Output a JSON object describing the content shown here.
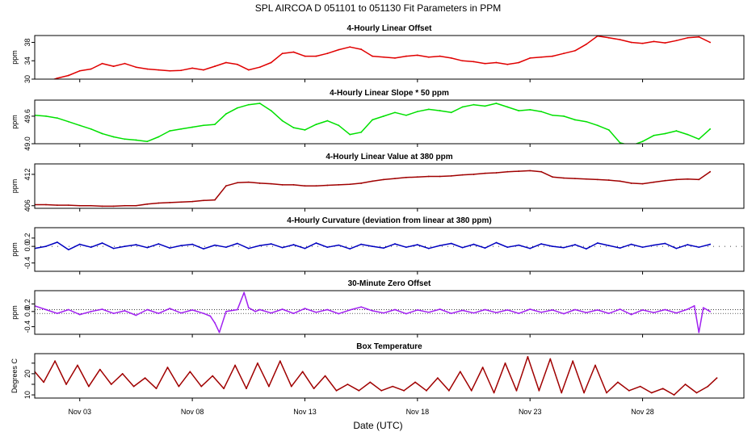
{
  "figure": {
    "title": "SPL   AIRCOA D   051101 to 051130   Fit Parameters in PPM",
    "xlabel": "Date (UTC)"
  },
  "chart_data": [
    {
      "type": "line",
      "title": "4-Hourly Linear Offset",
      "ylabel": "ppm",
      "color": "#e00000",
      "xlim": [
        0,
        31.5
      ],
      "ylim": [
        30,
        39.5
      ],
      "yticks": [
        30,
        34,
        38
      ],
      "ytick_labels": [
        "30",
        "34",
        "38"
      ],
      "xticks": [
        2,
        7,
        12,
        17,
        22,
        27
      ],
      "xtick_labels": [
        "Nov 03",
        "Nov 08",
        "Nov 13",
        "Nov 18",
        "Nov 23",
        "Nov 28"
      ],
      "series": [
        {
          "x": [
            0,
            0.5,
            1,
            1.5,
            2,
            2.5,
            3,
            3.5,
            4,
            4.5,
            5,
            5.5,
            6,
            6.5,
            7,
            7.5,
            8,
            8.5,
            9,
            9.5,
            10,
            10.5,
            11,
            11.5,
            12,
            12.5,
            13,
            13.5,
            14,
            14.5,
            15,
            15.5,
            16,
            16.5,
            17,
            17.5,
            18,
            18.5,
            19,
            19.5,
            20,
            20.5,
            21,
            21.5,
            22,
            22.5,
            23,
            23.5,
            24,
            24.5,
            25,
            25.5,
            26,
            26.5,
            27,
            27.5,
            28,
            28.5,
            29,
            29.5,
            30
          ],
          "y": [
            29.5,
            29.4,
            30.2,
            30.8,
            31.8,
            32.2,
            33.4,
            32.8,
            33.4,
            32.6,
            32.2,
            32.0,
            31.8,
            31.9,
            32.4,
            32.0,
            32.8,
            33.6,
            33.2,
            32.0,
            32.6,
            33.6,
            35.6,
            35.9,
            35.0,
            35.0,
            35.6,
            36.4,
            37.0,
            36.5,
            35.0,
            34.8,
            34.6,
            35.0,
            35.2,
            34.8,
            35.0,
            34.6,
            34.0,
            33.8,
            33.4,
            33.6,
            33.2,
            33.6,
            34.6,
            34.8,
            35.0,
            35.6,
            36.2,
            37.6,
            39.4,
            39.0,
            38.6,
            38.0,
            37.8,
            38.2,
            37.9,
            38.4,
            39.0,
            39.2,
            38.0
          ]
        }
      ]
    },
    {
      "type": "line",
      "title": "4-Hourly Linear Slope * 50 ppm",
      "ylabel": "ppm",
      "color": "#00e000",
      "xlim": [
        0,
        31.5
      ],
      "ylim": [
        49.0,
        49.95
      ],
      "yticks": [
        49.0,
        49.6
      ],
      "ytick_labels": [
        "49.0",
        "49.6"
      ],
      "xticks": [
        2,
        7,
        12,
        17,
        22,
        27
      ],
      "series": [
        {
          "x": [
            0,
            0.5,
            1,
            1.5,
            2,
            2.5,
            3,
            3.5,
            4,
            4.5,
            5,
            5.5,
            6,
            6.5,
            7,
            7.5,
            8,
            8.5,
            9,
            9.5,
            10,
            10.5,
            11,
            11.5,
            12,
            12.5,
            13,
            13.5,
            14,
            14.5,
            15,
            15.5,
            16,
            16.5,
            17,
            17.5,
            18,
            18.5,
            19,
            19.5,
            20,
            20.5,
            21,
            21.5,
            22,
            22.5,
            23,
            23.5,
            24,
            24.5,
            25,
            25.5,
            26,
            26.5,
            27,
            27.5,
            28,
            28.5,
            29,
            29.5,
            30
          ],
          "y": [
            49.62,
            49.6,
            49.56,
            49.48,
            49.4,
            49.32,
            49.22,
            49.15,
            49.1,
            49.08,
            49.05,
            49.15,
            49.28,
            49.32,
            49.36,
            49.4,
            49.42,
            49.65,
            49.78,
            49.85,
            49.88,
            49.72,
            49.5,
            49.35,
            49.3,
            49.42,
            49.5,
            49.4,
            49.2,
            49.25,
            49.52,
            49.6,
            49.68,
            49.62,
            49.7,
            49.75,
            49.72,
            49.68,
            49.8,
            49.85,
            49.82,
            49.88,
            49.8,
            49.72,
            49.74,
            49.7,
            49.62,
            49.6,
            49.52,
            49.48,
            49.4,
            49.3,
            49.02,
            48.96,
            49.05,
            49.18,
            49.22,
            49.28,
            49.2,
            49.1,
            49.32
          ]
        }
      ]
    },
    {
      "type": "line",
      "title": "4-Hourly Linear Value at 380 ppm",
      "ylabel": "ppm",
      "color": "#a00000",
      "xlim": [
        0,
        31.5
      ],
      "ylim": [
        405.5,
        414
      ],
      "yticks": [
        406,
        412
      ],
      "ytick_labels": [
        "406",
        "412"
      ],
      "xticks": [
        2,
        7,
        12,
        17,
        22,
        27
      ],
      "series": [
        {
          "x": [
            0,
            0.5,
            1,
            1.5,
            2,
            2.5,
            3,
            3.5,
            4,
            4.5,
            5,
            5.5,
            6,
            6.5,
            7,
            7.5,
            8,
            8.5,
            9,
            9.5,
            10,
            10.5,
            11,
            11.5,
            12,
            12.5,
            13,
            13.5,
            14,
            14.5,
            15,
            15.5,
            16,
            16.5,
            17,
            17.5,
            18,
            18.5,
            19,
            19.5,
            20,
            20.5,
            21,
            21.5,
            22,
            22.5,
            23,
            23.5,
            24,
            24.5,
            25,
            25.5,
            26,
            26.5,
            27,
            27.5,
            28,
            28.5,
            29,
            29.5,
            30
          ],
          "y": [
            406.2,
            406.2,
            406.1,
            406.1,
            406.0,
            406.0,
            405.9,
            405.9,
            406.0,
            406.0,
            406.3,
            406.5,
            406.6,
            406.7,
            406.8,
            407.0,
            407.1,
            409.8,
            410.4,
            410.5,
            410.3,
            410.2,
            410.0,
            410.0,
            409.8,
            409.8,
            409.9,
            410.0,
            410.1,
            410.3,
            410.7,
            411.0,
            411.2,
            411.4,
            411.5,
            411.6,
            411.6,
            411.7,
            411.9,
            412.0,
            412.2,
            412.3,
            412.5,
            412.6,
            412.7,
            412.5,
            411.5,
            411.3,
            411.2,
            411.1,
            411.0,
            410.9,
            410.7,
            410.3,
            410.2,
            410.5,
            410.8,
            411.0,
            411.1,
            411.0,
            412.5
          ]
        }
      ]
    },
    {
      "type": "line",
      "title": "4-Hourly Curvature (deviation from linear at 380 ppm)",
      "ylabel": "ppm",
      "color": "#0000c0",
      "xlim": [
        0,
        31.5
      ],
      "ylim": [
        -0.6,
        0.45
      ],
      "yticks": [
        -0.4,
        0.0,
        0.2
      ],
      "ytick_labels": [
        "-0.4",
        "0.0",
        "0.2"
      ],
      "xticks": [
        2,
        7,
        12,
        17,
        22,
        27
      ],
      "series": [
        {
          "x": [
            0,
            0.5,
            1,
            1.5,
            2,
            2.5,
            3,
            3.5,
            4,
            4.5,
            5,
            5.5,
            6,
            6.5,
            7,
            7.5,
            8,
            8.5,
            9,
            9.5,
            10,
            10.5,
            11,
            11.5,
            12,
            12.5,
            13,
            13.5,
            14,
            14.5,
            15,
            15.5,
            16,
            16.5,
            17,
            17.5,
            18,
            18.5,
            19,
            19.5,
            20,
            20.5,
            21,
            21.5,
            22,
            22.5,
            23,
            23.5,
            24,
            24.5,
            25,
            25.5,
            26,
            26.5,
            27,
            27.5,
            28,
            28.5,
            29,
            29.5,
            30
          ],
          "y": [
            -0.05,
            0.0,
            0.1,
            -0.08,
            0.05,
            -0.02,
            0.08,
            -0.05,
            0.0,
            0.04,
            -0.03,
            0.06,
            -0.04,
            0.02,
            0.05,
            -0.06,
            0.03,
            -0.02,
            0.07,
            -0.05,
            0.02,
            0.06,
            -0.03,
            0.04,
            -0.05,
            0.08,
            -0.02,
            0.03,
            -0.06,
            0.05,
            0.0,
            -0.04,
            0.06,
            -0.02,
            0.04,
            -0.05,
            0.02,
            0.07,
            -0.03,
            0.05,
            -0.04,
            0.09,
            -0.02,
            0.03,
            -0.05,
            0.06,
            0.0,
            -0.03,
            0.04,
            -0.06,
            0.08,
            0.02,
            -0.04,
            0.05,
            -0.02,
            0.03,
            0.07,
            -0.05,
            0.04,
            -0.02,
            0.05
          ]
        }
      ]
    },
    {
      "type": "line",
      "title": "30-Minute Zero Offset",
      "ylabel": "ppm",
      "color": "#a020f0",
      "xlim": [
        0,
        31.5
      ],
      "ylim": [
        -0.6,
        0.55
      ],
      "yticks": [
        -0.4,
        0.0,
        0.2
      ],
      "ytick_labels": [
        "-0.4",
        "0.0",
        "0.2"
      ],
      "xticks": [
        2,
        7,
        12,
        17,
        22,
        27
      ],
      "series": [
        {
          "x": [
            0,
            0.5,
            1,
            1.5,
            2,
            2.5,
            3,
            3.5,
            4,
            4.5,
            5,
            5.5,
            6,
            6.5,
            7,
            7.5,
            7.8,
            8.0,
            8.2,
            8.5,
            9,
            9.3,
            9.5,
            9.8,
            10,
            10.5,
            11,
            11.5,
            12,
            12.5,
            13,
            13.5,
            14,
            14.5,
            15,
            15.5,
            16,
            16.5,
            17,
            17.5,
            18,
            18.5,
            19,
            19.5,
            20,
            20.5,
            21,
            21.5,
            22,
            22.5,
            23,
            23.5,
            24,
            24.5,
            25,
            25.5,
            26,
            26.5,
            27,
            27.5,
            28,
            28.5,
            29,
            29.3,
            29.5,
            29.7,
            30
          ],
          "y": [
            0.15,
            0.05,
            -0.05,
            0.05,
            -0.08,
            0.0,
            0.06,
            -0.05,
            0.02,
            -0.1,
            0.05,
            -0.05,
            0.08,
            -0.04,
            0.04,
            -0.05,
            -0.12,
            -0.3,
            -0.55,
            0.0,
            0.05,
            0.5,
            0.1,
            0.0,
            0.05,
            -0.04,
            0.06,
            -0.05,
            0.08,
            -0.02,
            0.05,
            -0.06,
            0.04,
            0.12,
            0.02,
            -0.04,
            0.05,
            -0.06,
            0.04,
            -0.02,
            0.06,
            -0.05,
            0.03,
            -0.04,
            0.05,
            -0.03,
            0.04,
            -0.05,
            0.06,
            -0.02,
            0.04,
            -0.06,
            0.05,
            -0.03,
            0.04,
            -0.05,
            0.06,
            -0.08,
            0.04,
            -0.03,
            0.05,
            -0.04,
            0.06,
            0.15,
            -0.55,
            0.1,
            0.0
          ]
        }
      ]
    },
    {
      "type": "line",
      "title": "Box Temperature",
      "ylabel": "Degrees C",
      "color": "#a00000",
      "xlim": [
        0,
        31.5
      ],
      "ylim": [
        8.5,
        29.5
      ],
      "yticks": [
        10,
        15,
        20,
        25
      ],
      "ytick_labels": [
        "10",
        "",
        "20",
        ""
      ],
      "xticks": [
        2,
        7,
        12,
        17,
        22,
        27
      ],
      "xtick_labels": [
        "Nov 03",
        "Nov 08",
        "Nov 13",
        "Nov 18",
        "Nov 23",
        "Nov 28"
      ],
      "series": [
        {
          "x": [
            0,
            0.4,
            0.9,
            1.4,
            1.9,
            2.4,
            2.9,
            3.4,
            3.9,
            4.4,
            4.9,
            5.4,
            5.9,
            6.4,
            6.9,
            7.4,
            7.9,
            8.4,
            8.9,
            9.4,
            9.9,
            10.4,
            10.9,
            11.4,
            11.9,
            12.4,
            12.9,
            13.4,
            13.9,
            14.4,
            14.9,
            15.4,
            15.9,
            16.4,
            16.9,
            17.4,
            17.9,
            18.4,
            18.9,
            19.4,
            19.9,
            20.4,
            20.9,
            21.4,
            21.9,
            22.4,
            22.9,
            23.4,
            23.9,
            24.4,
            24.9,
            25.4,
            25.9,
            26.4,
            26.9,
            27.4,
            27.9,
            28.4,
            28.9,
            29.4,
            29.9,
            30.3
          ],
          "y": [
            21,
            16,
            26,
            15,
            24,
            14,
            22,
            15,
            20,
            14,
            18,
            13,
            23,
            14,
            21,
            14,
            19,
            13,
            24,
            13,
            25,
            14,
            26,
            14,
            21,
            13,
            19,
            12,
            15,
            12,
            16,
            12,
            14,
            12,
            16,
            12,
            18,
            12,
            21,
            12,
            23,
            11,
            25,
            12,
            28,
            12,
            27,
            11,
            26,
            11,
            24,
            11,
            16,
            12,
            14,
            11,
            13,
            10,
            15,
            11,
            14,
            18
          ]
        }
      ]
    }
  ]
}
